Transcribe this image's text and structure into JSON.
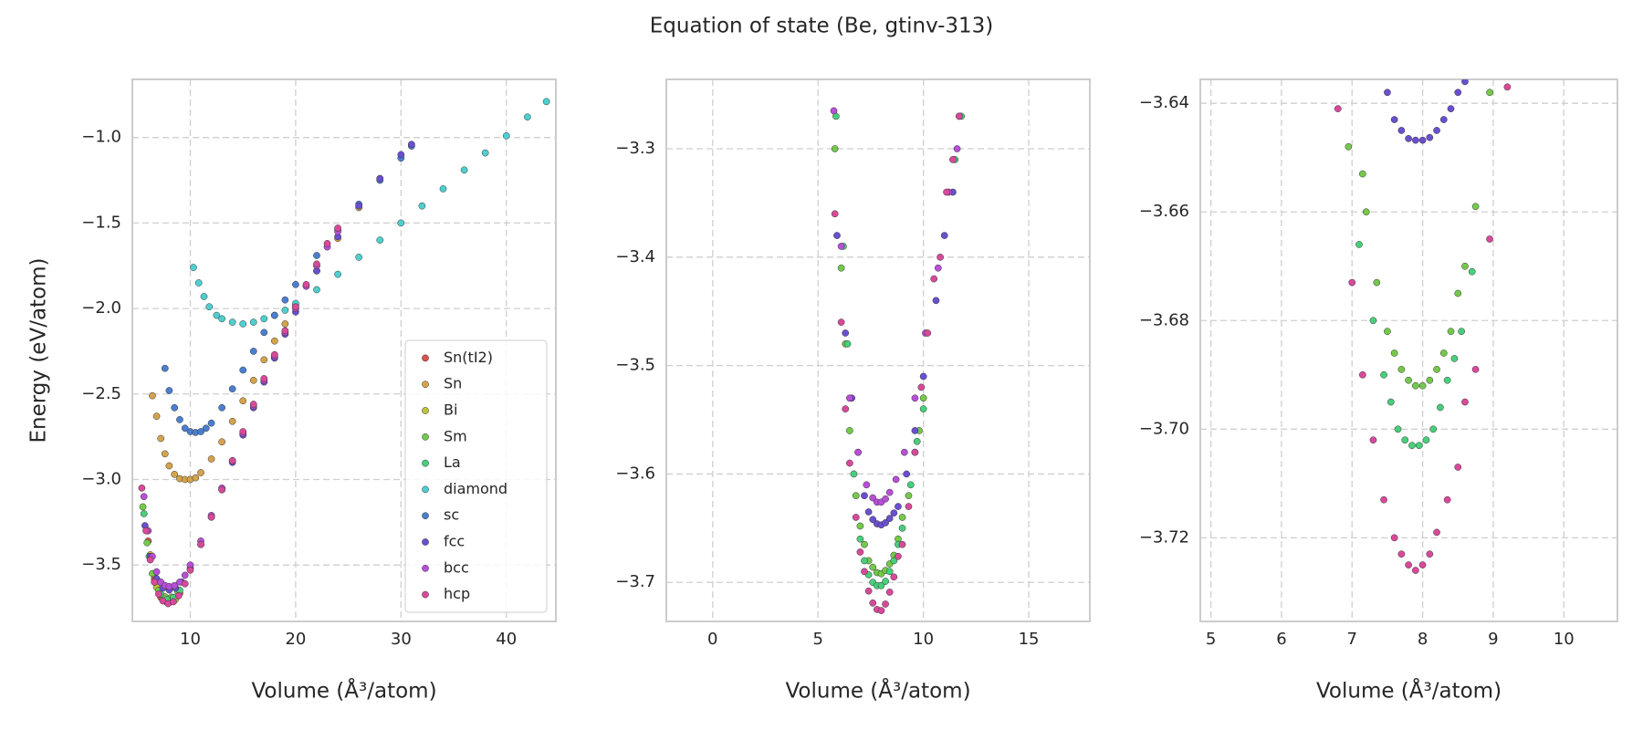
{
  "title": "Equation of state (Be, gtinv-313)",
  "chart_data": [
    {
      "type": "scatter",
      "xlabel": "Volume (Å³/atom)",
      "ylabel": "Energy (eV/atom)",
      "xlim": [
        4.5,
        44.7
      ],
      "ylim": [
        -3.83,
        -0.66
      ],
      "xticks": [
        10,
        20,
        30,
        40
      ],
      "yticks": [
        {
          "value": -3.5,
          "label": "−3.5"
        },
        {
          "value": -3.0,
          "label": "−3.0"
        },
        {
          "value": -2.5,
          "label": "−2.5"
        },
        {
          "value": -2.0,
          "label": "−2.0"
        },
        {
          "value": -1.5,
          "label": "−1.5"
        },
        {
          "value": -1.0,
          "label": "−1.0"
        }
      ],
      "grid": true,
      "legend": "lower right",
      "series": [
        {
          "name": "Sn(tI2)",
          "color": "#d9534f",
          "x": [
            6.0,
            6.6,
            7.2,
            7.8,
            8.4,
            9.0
          ],
          "values": [
            -3.36,
            -3.58,
            -3.69,
            -3.72,
            -3.71,
            -3.665
          ]
        },
        {
          "name": "Sn",
          "color": "#d4a34a",
          "x": [
            6.4,
            6.8,
            7.2,
            7.6,
            8,
            8.5,
            9,
            9.5,
            10,
            10.5,
            11,
            12,
            13,
            14,
            15,
            16,
            17,
            18,
            19,
            20,
            22,
            24,
            26,
            28
          ],
          "values": [
            -2.51,
            -2.63,
            -2.76,
            -2.85,
            -2.92,
            -2.97,
            -2.995,
            -3.0,
            -3.0,
            -2.99,
            -2.96,
            -2.88,
            -2.78,
            -2.66,
            -2.54,
            -2.42,
            -2.3,
            -2.19,
            -2.09,
            -1.98,
            -1.78,
            -1.59,
            -1.41,
            -1.24
          ]
        },
        {
          "name": "Bi",
          "color": "#c2c23a",
          "x": [
            6.2,
            6.8,
            7.4,
            8.0,
            8.6
          ],
          "values": [
            -3.44,
            -3.63,
            -3.7,
            -3.72,
            -3.7
          ]
        },
        {
          "name": "Sm",
          "color": "#74c94a",
          "x": [
            5.5,
            5.9,
            6.4,
            7.0,
            7.6,
            8.2,
            8.8
          ],
          "values": [
            -3.16,
            -3.37,
            -3.55,
            -3.648,
            -3.686,
            -3.688,
            -3.655
          ]
        },
        {
          "name": "La",
          "color": "#48cf7c",
          "x": [
            5.6,
            6.1,
            6.6,
            7.2,
            7.8,
            8.4,
            9.0
          ],
          "values": [
            -3.2,
            -3.45,
            -3.6,
            -3.67,
            -3.702,
            -3.69,
            -3.648
          ]
        },
        {
          "name": "diamond",
          "color": "#4fcfcf",
          "x": [
            10.3,
            10.8,
            11.3,
            11.8,
            12.5,
            13,
            14,
            15,
            16,
            17,
            18,
            19,
            20,
            22,
            24,
            26,
            28,
            30,
            32,
            34,
            36,
            38,
            40,
            42,
            43.8
          ],
          "values": [
            -1.76,
            -1.85,
            -1.93,
            -1.99,
            -2.04,
            -2.06,
            -2.08,
            -2.09,
            -2.08,
            -2.06,
            -2.04,
            -2.01,
            -1.97,
            -1.89,
            -1.8,
            -1.7,
            -1.6,
            -1.5,
            -1.4,
            -1.3,
            -1.19,
            -1.09,
            -0.99,
            -0.88,
            -0.79
          ]
        },
        {
          "name": "sc",
          "color": "#4a7fd0",
          "x": [
            7.6,
            8.0,
            8.5,
            9,
            9.5,
            10,
            10.5,
            11,
            11.5,
            12,
            13,
            14,
            15,
            16,
            17,
            18,
            19,
            20,
            22,
            24,
            26,
            28,
            30,
            31
          ],
          "values": [
            -2.35,
            -2.48,
            -2.58,
            -2.65,
            -2.7,
            -2.72,
            -2.725,
            -2.72,
            -2.7,
            -2.67,
            -2.58,
            -2.47,
            -2.36,
            -2.25,
            -2.14,
            -2.04,
            -1.95,
            -1.86,
            -1.69,
            -1.54,
            -1.39,
            -1.25,
            -1.12,
            -1.05
          ]
        },
        {
          "name": "fcc",
          "color": "#6a4fd0",
          "x": [
            5.7,
            6.2,
            6.8,
            7.4,
            8.0,
            8.6,
            9.2,
            10,
            11,
            12,
            13,
            14,
            15,
            16,
            17,
            18,
            19,
            20,
            22,
            24,
            26,
            28,
            30,
            31
          ],
          "values": [
            -3.27,
            -3.45,
            -3.58,
            -3.635,
            -3.646,
            -3.635,
            -3.6,
            -3.52,
            -3.38,
            -3.22,
            -3.06,
            -2.9,
            -2.74,
            -2.58,
            -2.43,
            -2.29,
            -2.15,
            -2.02,
            -1.78,
            -1.58,
            -1.4,
            -1.24,
            -1.1,
            -1.04
          ]
        },
        {
          "name": "bcc",
          "color": "#b84fd8",
          "x": [
            5.6,
            6.0,
            6.4,
            6.8,
            7.2,
            7.6,
            8.0,
            8.5,
            9.0,
            9.5,
            10,
            11,
            12,
            13,
            14,
            15,
            16,
            17,
            18,
            19,
            20,
            21,
            22,
            23,
            24
          ],
          "values": [
            -3.1,
            -3.3,
            -3.45,
            -3.54,
            -3.6,
            -3.62,
            -3.626,
            -3.62,
            -3.6,
            -3.56,
            -3.5,
            -3.36,
            -3.21,
            -3.05,
            -2.89,
            -2.73,
            -2.57,
            -2.42,
            -2.28,
            -2.14,
            -2.0,
            -1.87,
            -1.75,
            -1.64,
            -1.55
          ]
        },
        {
          "name": "hcp",
          "color": "#d9499a",
          "x": [
            5.4,
            5.8,
            6.2,
            6.6,
            7.0,
            7.4,
            7.9,
            8.4,
            8.9,
            9.5,
            10,
            11,
            12,
            13,
            14,
            15,
            16,
            17,
            18,
            19,
            20,
            21,
            22,
            23,
            24
          ],
          "values": [
            -3.05,
            -3.3,
            -3.47,
            -3.6,
            -3.67,
            -3.71,
            -3.726,
            -3.715,
            -3.68,
            -3.61,
            -3.53,
            -3.38,
            -3.22,
            -3.06,
            -2.89,
            -2.72,
            -2.56,
            -2.41,
            -2.27,
            -2.13,
            -1.99,
            -1.86,
            -1.74,
            -1.62,
            -1.53
          ]
        }
      ]
    },
    {
      "type": "scatter",
      "xlabel": "Volume (Å³/atom)",
      "xlim": [
        -2.2,
        17.9
      ],
      "ylim": [
        -3.736,
        -3.236
      ],
      "xticks": [
        0,
        5,
        10,
        15
      ],
      "yticks": [
        {
          "value": -3.7,
          "label": "−3.7"
        },
        {
          "value": -3.6,
          "label": "−3.6"
        },
        {
          "value": -3.5,
          "label": "−3.5"
        },
        {
          "value": -3.4,
          "label": "−3.4"
        },
        {
          "value": -3.3,
          "label": "−3.3"
        }
      ],
      "grid": true,
      "series": [
        {
          "color": "#74c94a",
          "x": [
            5.8,
            6.1,
            6.3,
            6.5,
            6.8,
            7.0,
            7.2,
            7.4,
            7.6,
            7.8,
            8.0,
            8.2,
            8.4,
            8.6,
            8.8,
            9.0,
            9.3,
            9.6,
            9.8,
            10.0,
            11.7
          ],
          "values": [
            -3.3,
            -3.41,
            -3.48,
            -3.56,
            -3.62,
            -3.648,
            -3.665,
            -3.68,
            -3.686,
            -3.691,
            -3.692,
            -3.689,
            -3.683,
            -3.675,
            -3.66,
            -3.64,
            -3.62,
            -3.58,
            -3.56,
            -3.53,
            -3.27
          ]
        },
        {
          "color": "#48cf7c",
          "x": [
            5.85,
            6.2,
            6.4,
            6.7,
            7.0,
            7.2,
            7.4,
            7.6,
            7.8,
            8.0,
            8.2,
            8.4,
            8.6,
            8.8,
            9.0,
            9.4,
            9.7,
            10.0,
            11.5,
            11.8
          ],
          "values": [
            -3.27,
            -3.39,
            -3.48,
            -3.6,
            -3.66,
            -3.68,
            -3.693,
            -3.7,
            -3.703,
            -3.703,
            -3.699,
            -3.69,
            -3.68,
            -3.665,
            -3.65,
            -3.61,
            -3.57,
            -3.54,
            -3.31,
            -3.27
          ]
        },
        {
          "color": "#6a4fd0",
          "x": [
            5.9,
            6.3,
            6.6,
            6.9,
            7.2,
            7.4,
            7.6,
            7.8,
            8.0,
            8.2,
            8.4,
            8.6,
            8.8,
            9.2,
            9.6,
            10.0,
            10.6,
            11.0,
            11.4
          ],
          "values": [
            -3.38,
            -3.47,
            -3.53,
            -3.58,
            -3.62,
            -3.635,
            -3.642,
            -3.646,
            -3.647,
            -3.645,
            -3.641,
            -3.636,
            -3.63,
            -3.6,
            -3.56,
            -3.51,
            -3.44,
            -3.38,
            -3.34
          ]
        },
        {
          "color": "#b84fd8",
          "x": [
            5.75,
            6.1,
            6.5,
            6.9,
            7.3,
            7.6,
            7.8,
            8.0,
            8.2,
            8.4,
            8.7,
            9.1,
            9.6,
            10.1,
            10.7,
            11.2,
            11.6
          ],
          "values": [
            -3.265,
            -3.39,
            -3.53,
            -3.58,
            -3.61,
            -3.622,
            -3.626,
            -3.626,
            -3.623,
            -3.617,
            -3.605,
            -3.58,
            -3.53,
            -3.47,
            -3.41,
            -3.34,
            -3.3
          ]
        },
        {
          "color": "#d9499a",
          "x": [
            5.8,
            6.1,
            6.3,
            6.5,
            6.8,
            7.0,
            7.2,
            7.4,
            7.6,
            7.8,
            8.0,
            8.2,
            8.4,
            8.6,
            8.8,
            9.0,
            9.3,
            9.6,
            9.9,
            10.2,
            10.5,
            10.8,
            11.1,
            11.4,
            11.7
          ],
          "values": [
            -3.36,
            -3.46,
            -3.54,
            -3.59,
            -3.64,
            -3.672,
            -3.69,
            -3.708,
            -3.719,
            -3.725,
            -3.726,
            -3.72,
            -3.709,
            -3.695,
            -3.676,
            -3.665,
            -3.63,
            -3.58,
            -3.52,
            -3.47,
            -3.42,
            -3.4,
            -3.34,
            -3.31,
            -3.27
          ]
        }
      ]
    },
    {
      "type": "scatter",
      "xlabel": "Volume (Å³/atom)",
      "xlim": [
        4.85,
        10.76
      ],
      "ylim": [
        -3.7354,
        -3.6356
      ],
      "xticks": [
        5,
        6,
        7,
        8,
        9,
        10
      ],
      "yticks": [
        {
          "value": -3.72,
          "label": "−3.72"
        },
        {
          "value": -3.7,
          "label": "−3.70"
        },
        {
          "value": -3.68,
          "label": "−3.68"
        },
        {
          "value": -3.66,
          "label": "−3.66"
        },
        {
          "value": -3.64,
          "label": "−3.64"
        }
      ],
      "grid": true,
      "series": [
        {
          "color": "#6a4fd0",
          "x": [
            7.5,
            7.6,
            7.7,
            7.8,
            7.9,
            8.0,
            8.1,
            8.2,
            8.3,
            8.4,
            8.5,
            8.6
          ],
          "values": [
            -3.638,
            -3.643,
            -3.645,
            -3.6465,
            -3.6468,
            -3.6468,
            -3.6463,
            -3.645,
            -3.643,
            -3.641,
            -3.638,
            -3.636
          ]
        },
        {
          "color": "#74c94a",
          "x": [
            6.95,
            7.15,
            7.2,
            7.35,
            7.5,
            7.6,
            7.7,
            7.8,
            7.9,
            8.0,
            8.1,
            8.2,
            8.3,
            8.4,
            8.5,
            8.6,
            8.75,
            8.95
          ],
          "values": [
            -3.648,
            -3.653,
            -3.66,
            -3.673,
            -3.682,
            -3.686,
            -3.689,
            -3.691,
            -3.692,
            -3.692,
            -3.691,
            -3.689,
            -3.686,
            -3.682,
            -3.675,
            -3.67,
            -3.659,
            -3.638
          ]
        },
        {
          "color": "#48cf7c",
          "x": [
            7.1,
            7.3,
            7.45,
            7.55,
            7.65,
            7.75,
            7.85,
            7.95,
            8.05,
            8.15,
            8.25,
            8.35,
            8.45,
            8.55,
            8.7
          ],
          "values": [
            -3.666,
            -3.68,
            -3.69,
            -3.695,
            -3.7,
            -3.702,
            -3.703,
            -3.703,
            -3.702,
            -3.7,
            -3.696,
            -3.691,
            -3.687,
            -3.682,
            -3.671
          ]
        },
        {
          "color": "#d9499a",
          "x": [
            6.8,
            7.0,
            7.15,
            7.3,
            7.45,
            7.6,
            7.7,
            7.8,
            7.9,
            8.0,
            8.1,
            8.2,
            8.35,
            8.5,
            8.6,
            8.75,
            8.95,
            9.2
          ],
          "values": [
            -3.641,
            -3.673,
            -3.69,
            -3.702,
            -3.713,
            -3.72,
            -3.723,
            -3.725,
            -3.726,
            -3.725,
            -3.723,
            -3.719,
            -3.713,
            -3.707,
            -3.695,
            -3.689,
            -3.665,
            -3.637
          ]
        }
      ]
    }
  ]
}
